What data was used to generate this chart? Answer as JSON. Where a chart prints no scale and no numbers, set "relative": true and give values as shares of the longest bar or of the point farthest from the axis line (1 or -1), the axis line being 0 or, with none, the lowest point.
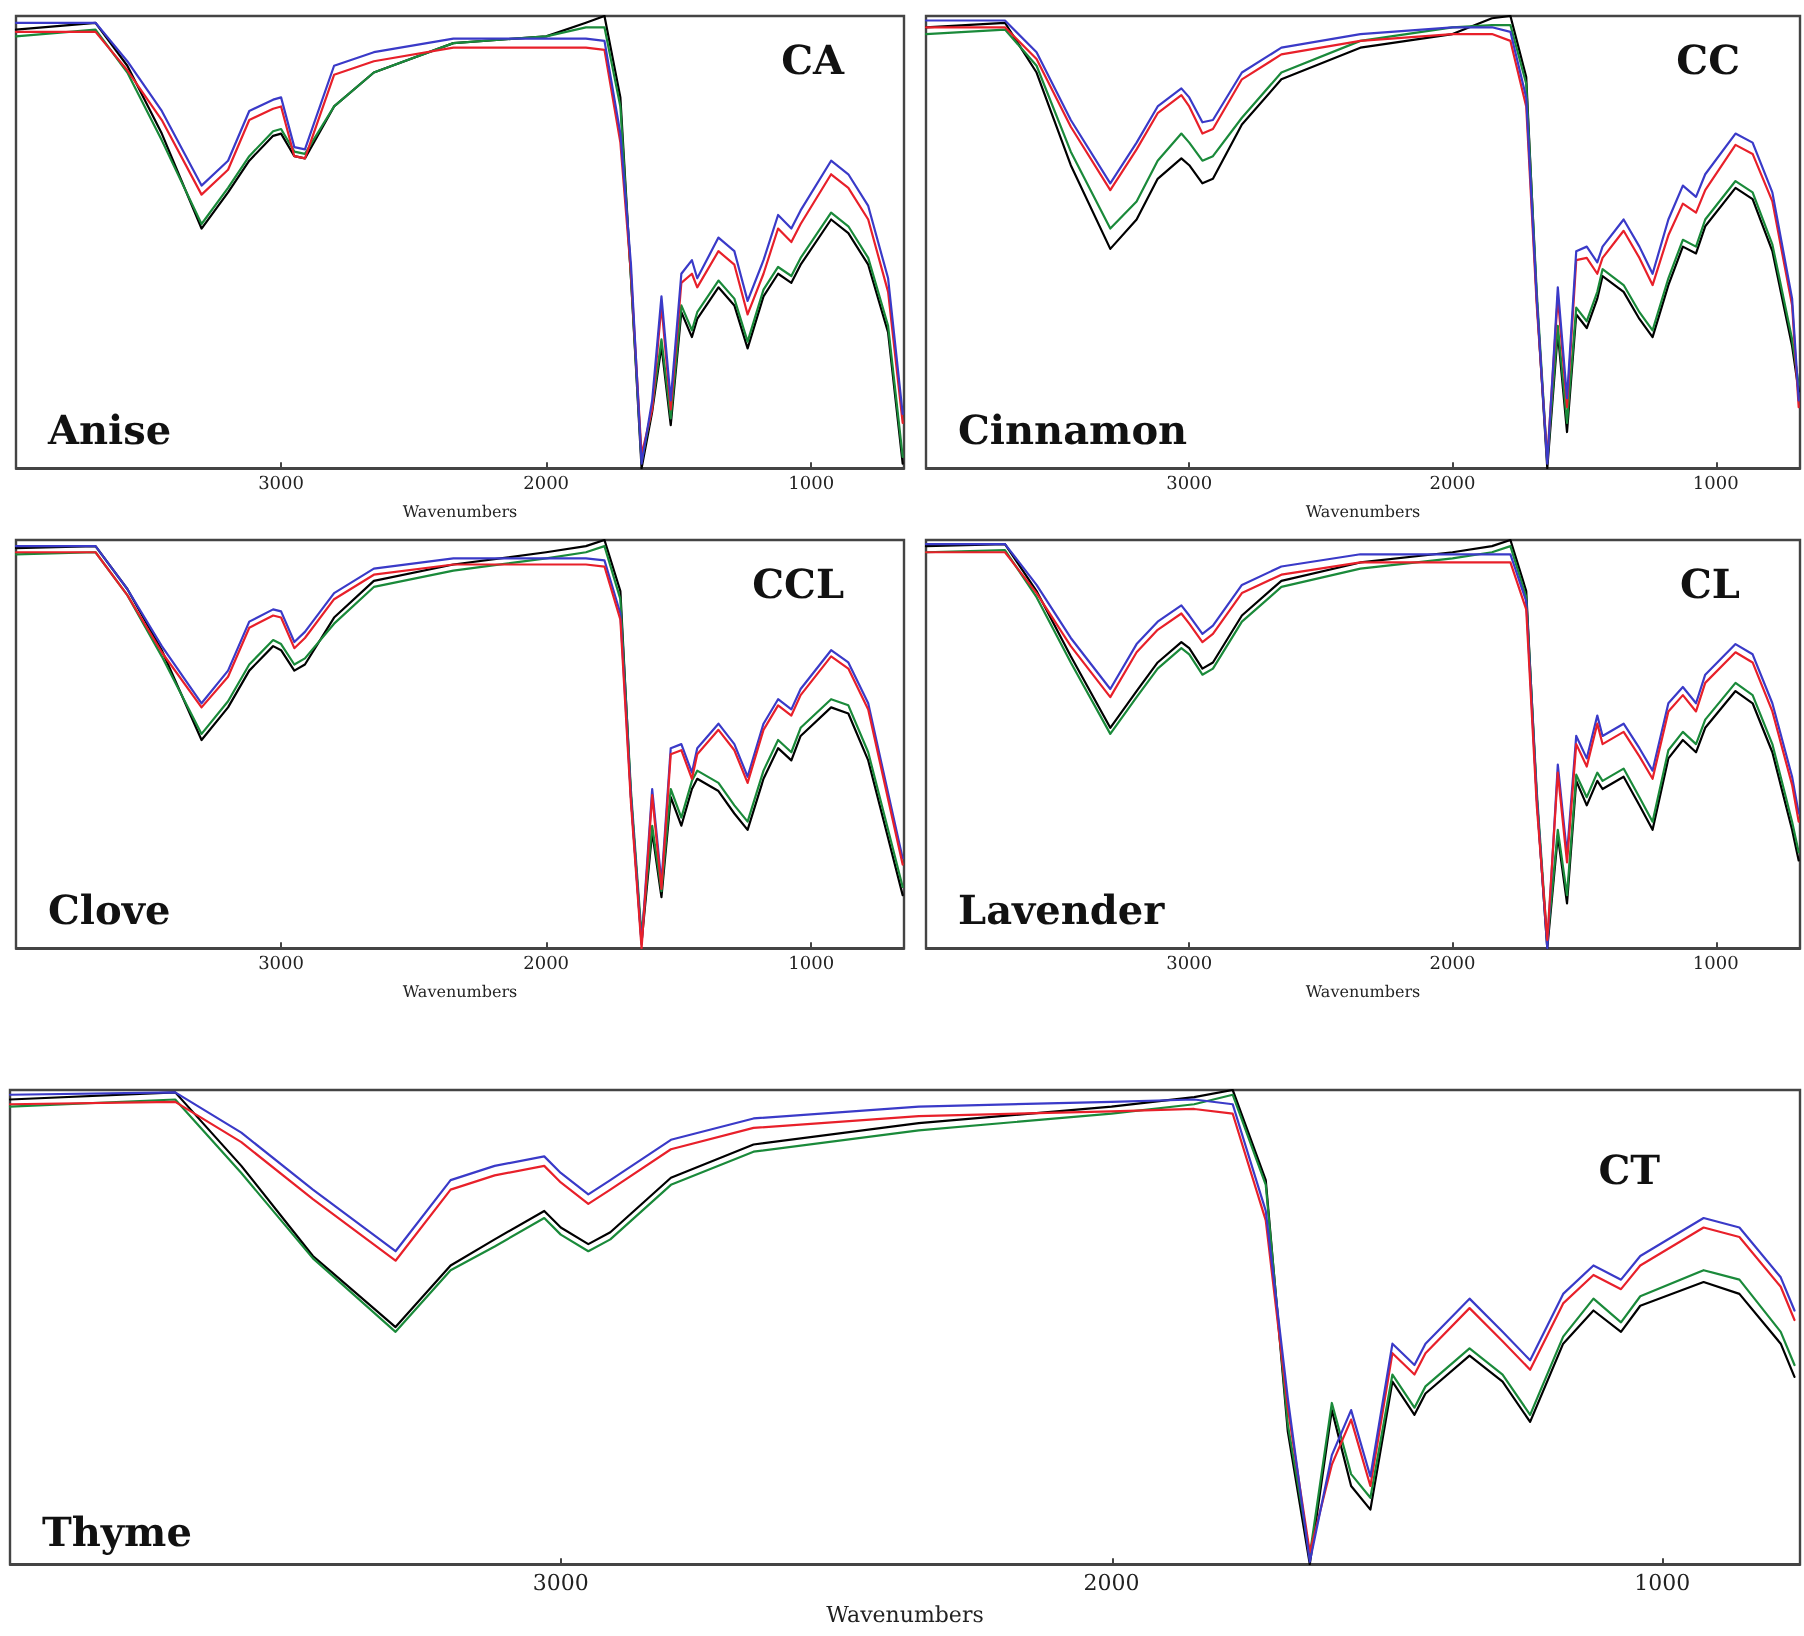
{
  "chart_data": [
    {
      "type": "line",
      "relative": true,
      "xlabel": "Wavenumbers",
      "annotations": [
        "CA",
        "Anise"
      ],
      "xlim": [
        4000,
        650
      ],
      "xticks": [
        3000,
        2000,
        1000
      ],
      "x": [
        4000,
        3700,
        3580,
        3450,
        3300,
        3200,
        3120,
        3030,
        3000,
        2950,
        2910,
        2800,
        2650,
        2350,
        2000,
        1850,
        1780,
        1720,
        1680,
        1640,
        1600,
        1565,
        1530,
        1490,
        1450,
        1430,
        1350,
        1290,
        1240,
        1180,
        1125,
        1075,
        1040,
        925,
        860,
        785,
        710,
        655
      ],
      "series": [
        {
          "color": "#000000",
          "values": [
            0.97,
            0.985,
            0.89,
            0.74,
            0.53,
            0.61,
            0.68,
            0.735,
            0.74,
            0.69,
            0.685,
            0.8,
            0.875,
            0.94,
            0.955,
            0.985,
            1,
            0.82,
            0.42,
            0,
            0.125,
            0.27,
            0.095,
            0.345,
            0.29,
            0.33,
            0.4,
            0.36,
            0.265,
            0.38,
            0.43,
            0.41,
            0.45,
            0.55,
            0.52,
            0.45,
            0.3,
            0.01
          ]
        },
        {
          "color": "#1a8a3a",
          "values": [
            0.955,
            0.97,
            0.875,
            0.725,
            0.54,
            0.62,
            0.69,
            0.745,
            0.75,
            0.7,
            0.695,
            0.8,
            0.875,
            0.94,
            0.955,
            0.975,
            0.975,
            0.8,
            0.42,
            0.015,
            0.135,
            0.285,
            0.11,
            0.36,
            0.305,
            0.345,
            0.415,
            0.375,
            0.28,
            0.395,
            0.445,
            0.425,
            0.465,
            0.565,
            0.535,
            0.465,
            0.315,
            0.025
          ]
        },
        {
          "color": "#e8202a",
          "values": [
            0.965,
            0.965,
            0.88,
            0.77,
            0.605,
            0.66,
            0.77,
            0.795,
            0.8,
            0.69,
            0.685,
            0.87,
            0.9,
            0.93,
            0.93,
            0.93,
            0.925,
            0.72,
            0.43,
            0.03,
            0.13,
            0.36,
            0.13,
            0.41,
            0.43,
            0.4,
            0.48,
            0.45,
            0.34,
            0.43,
            0.53,
            0.5,
            0.54,
            0.65,
            0.62,
            0.55,
            0.39,
            0.1
          ]
        },
        {
          "color": "#3a3ac8",
          "values": [
            0.985,
            0.985,
            0.9,
            0.79,
            0.625,
            0.68,
            0.79,
            0.815,
            0.82,
            0.71,
            0.705,
            0.89,
            0.92,
            0.95,
            0.95,
            0.95,
            0.945,
            0.74,
            0.45,
            0.01,
            0.15,
            0.38,
            0.15,
            0.43,
            0.46,
            0.42,
            0.51,
            0.48,
            0.37,
            0.46,
            0.56,
            0.53,
            0.57,
            0.68,
            0.65,
            0.58,
            0.42,
            0.12
          ]
        }
      ]
    },
    {
      "type": "line",
      "relative": true,
      "xlabel": "Wavenumbers",
      "annotations": [
        "CC",
        "Cinnamon"
      ],
      "xlim": [
        4000,
        680
      ],
      "xticks": [
        3000,
        2000,
        1000
      ],
      "x": [
        4000,
        3700,
        3580,
        3450,
        3300,
        3200,
        3120,
        3030,
        3000,
        2950,
        2910,
        2800,
        2650,
        2350,
        2000,
        1850,
        1780,
        1720,
        1680,
        1640,
        1600,
        1565,
        1530,
        1490,
        1450,
        1430,
        1350,
        1290,
        1240,
        1180,
        1125,
        1075,
        1040,
        925,
        860,
        785,
        710,
        685
      ],
      "series": [
        {
          "color": "#000000",
          "values": [
            0.975,
            0.985,
            0.875,
            0.67,
            0.485,
            0.55,
            0.64,
            0.685,
            0.67,
            0.63,
            0.64,
            0.76,
            0.86,
            0.93,
            0.96,
            0.995,
            1,
            0.865,
            0.375,
            0,
            0.3,
            0.08,
            0.34,
            0.31,
            0.375,
            0.425,
            0.39,
            0.33,
            0.29,
            0.405,
            0.49,
            0.475,
            0.535,
            0.62,
            0.595,
            0.48,
            0.27,
            0.17
          ]
        },
        {
          "color": "#1a8a3a",
          "values": [
            0.96,
            0.97,
            0.89,
            0.7,
            0.53,
            0.59,
            0.68,
            0.74,
            0.72,
            0.68,
            0.69,
            0.775,
            0.875,
            0.945,
            0.975,
            0.98,
            0.98,
            0.85,
            0.39,
            0.015,
            0.315,
            0.1,
            0.355,
            0.325,
            0.39,
            0.44,
            0.405,
            0.345,
            0.305,
            0.42,
            0.505,
            0.49,
            0.55,
            0.635,
            0.61,
            0.495,
            0.285,
            0.185
          ]
        },
        {
          "color": "#e8202a",
          "values": [
            0.975,
            0.975,
            0.905,
            0.755,
            0.615,
            0.705,
            0.785,
            0.825,
            0.8,
            0.74,
            0.75,
            0.86,
            0.915,
            0.945,
            0.96,
            0.96,
            0.945,
            0.8,
            0.36,
            0.02,
            0.38,
            0.135,
            0.46,
            0.465,
            0.43,
            0.465,
            0.525,
            0.465,
            0.405,
            0.515,
            0.585,
            0.565,
            0.615,
            0.715,
            0.695,
            0.59,
            0.36,
            0.135
          ]
        },
        {
          "color": "#3a3ac8",
          "values": [
            0.99,
            0.99,
            0.92,
            0.77,
            0.63,
            0.72,
            0.8,
            0.84,
            0.82,
            0.765,
            0.77,
            0.875,
            0.93,
            0.96,
            0.975,
            0.975,
            0.965,
            0.82,
            0.375,
            0.01,
            0.4,
            0.155,
            0.48,
            0.49,
            0.455,
            0.49,
            0.55,
            0.49,
            0.43,
            0.55,
            0.625,
            0.6,
            0.65,
            0.74,
            0.72,
            0.61,
            0.375,
            0.15
          ]
        }
      ]
    },
    {
      "type": "line",
      "relative": true,
      "xlabel": "Wavenumbers",
      "annotations": [
        "CCL",
        "Clove"
      ],
      "xlim": [
        4000,
        650
      ],
      "xticks": [
        3000,
        2000,
        1000
      ],
      "x": [
        4000,
        3700,
        3580,
        3450,
        3300,
        3200,
        3120,
        3030,
        3000,
        2950,
        2910,
        2800,
        2650,
        2350,
        2000,
        1850,
        1780,
        1720,
        1680,
        1640,
        1600,
        1565,
        1530,
        1490,
        1450,
        1430,
        1350,
        1290,
        1240,
        1180,
        1125,
        1075,
        1040,
        925,
        860,
        785,
        710,
        655
      ],
      "series": [
        {
          "color": "#000000",
          "values": [
            0.98,
            0.985,
            0.88,
            0.73,
            0.51,
            0.59,
            0.68,
            0.74,
            0.73,
            0.68,
            0.695,
            0.81,
            0.9,
            0.94,
            0.97,
            0.985,
            1,
            0.875,
            0.37,
            0.015,
            0.285,
            0.125,
            0.37,
            0.3,
            0.39,
            0.415,
            0.385,
            0.33,
            0.29,
            0.415,
            0.49,
            0.46,
            0.52,
            0.59,
            0.575,
            0.46,
            0.27,
            0.13
          ]
        },
        {
          "color": "#1a8a3a",
          "values": [
            0.965,
            0.97,
            0.865,
            0.715,
            0.525,
            0.605,
            0.695,
            0.755,
            0.745,
            0.695,
            0.71,
            0.795,
            0.885,
            0.925,
            0.955,
            0.97,
            0.985,
            0.855,
            0.385,
            0.03,
            0.3,
            0.14,
            0.39,
            0.32,
            0.41,
            0.435,
            0.405,
            0.35,
            0.31,
            0.435,
            0.51,
            0.48,
            0.54,
            0.61,
            0.595,
            0.48,
            0.29,
            0.15
          ]
        },
        {
          "color": "#3a3ac8",
          "values": [
            0.985,
            0.985,
            0.88,
            0.74,
            0.6,
            0.68,
            0.8,
            0.83,
            0.825,
            0.75,
            0.775,
            0.87,
            0.93,
            0.955,
            0.955,
            0.955,
            0.95,
            0.82,
            0.37,
            0.01,
            0.39,
            0.16,
            0.49,
            0.5,
            0.43,
            0.49,
            0.55,
            0.5,
            0.42,
            0.55,
            0.61,
            0.585,
            0.635,
            0.73,
            0.7,
            0.6,
            0.38,
            0.22
          ]
        },
        {
          "color": "#e8202a",
          "values": [
            0.97,
            0.97,
            0.865,
            0.725,
            0.59,
            0.665,
            0.785,
            0.815,
            0.81,
            0.735,
            0.76,
            0.855,
            0.915,
            0.94,
            0.94,
            0.94,
            0.935,
            0.805,
            0.355,
            0,
            0.375,
            0.145,
            0.475,
            0.485,
            0.415,
            0.475,
            0.535,
            0.485,
            0.405,
            0.535,
            0.595,
            0.57,
            0.62,
            0.715,
            0.685,
            0.585,
            0.365,
            0.205
          ]
        }
      ]
    },
    {
      "type": "line",
      "relative": true,
      "xlabel": "Wavenumbers",
      "annotations": [
        "CL",
        "Lavender"
      ],
      "xlim": [
        4000,
        680
      ],
      "xticks": [
        3000,
        2000,
        1000
      ],
      "x": [
        4000,
        3700,
        3580,
        3450,
        3300,
        3200,
        3120,
        3030,
        3000,
        2950,
        2910,
        2800,
        2650,
        2350,
        2000,
        1850,
        1780,
        1720,
        1680,
        1640,
        1600,
        1565,
        1530,
        1490,
        1450,
        1430,
        1350,
        1290,
        1240,
        1180,
        1125,
        1075,
        1040,
        925,
        860,
        785,
        710,
        685
      ],
      "series": [
        {
          "color": "#000000",
          "values": [
            0.985,
            0.99,
            0.875,
            0.715,
            0.54,
            0.63,
            0.7,
            0.75,
            0.735,
            0.685,
            0.7,
            0.815,
            0.9,
            0.945,
            0.97,
            0.985,
            1,
            0.875,
            0.37,
            0,
            0.275,
            0.11,
            0.41,
            0.35,
            0.41,
            0.39,
            0.42,
            0.35,
            0.29,
            0.465,
            0.51,
            0.48,
            0.54,
            0.63,
            0.6,
            0.48,
            0.29,
            0.215
          ]
        },
        {
          "color": "#1a8a3a",
          "values": [
            0.97,
            0.975,
            0.86,
            0.7,
            0.525,
            0.615,
            0.685,
            0.735,
            0.72,
            0.67,
            0.685,
            0.8,
            0.885,
            0.93,
            0.955,
            0.97,
            0.985,
            0.86,
            0.385,
            0.015,
            0.29,
            0.13,
            0.425,
            0.37,
            0.43,
            0.41,
            0.44,
            0.37,
            0.31,
            0.485,
            0.53,
            0.5,
            0.56,
            0.65,
            0.62,
            0.5,
            0.31,
            0.235
          ]
        },
        {
          "color": "#3a3ac8",
          "values": [
            0.99,
            0.99,
            0.89,
            0.76,
            0.635,
            0.745,
            0.8,
            0.84,
            0.815,
            0.77,
            0.79,
            0.89,
            0.935,
            0.965,
            0.965,
            0.965,
            0.965,
            0.85,
            0.37,
            0,
            0.45,
            0.23,
            0.52,
            0.465,
            0.57,
            0.52,
            0.55,
            0.49,
            0.435,
            0.6,
            0.64,
            0.6,
            0.67,
            0.745,
            0.72,
            0.6,
            0.42,
            0.33
          ]
        },
        {
          "color": "#e8202a",
          "values": [
            0.97,
            0.97,
            0.87,
            0.74,
            0.615,
            0.725,
            0.78,
            0.82,
            0.795,
            0.75,
            0.77,
            0.87,
            0.915,
            0.945,
            0.945,
            0.945,
            0.945,
            0.83,
            0.35,
            0.02,
            0.43,
            0.21,
            0.5,
            0.445,
            0.55,
            0.5,
            0.53,
            0.47,
            0.415,
            0.58,
            0.62,
            0.58,
            0.65,
            0.725,
            0.7,
            0.58,
            0.4,
            0.31
          ]
        }
      ]
    },
    {
      "type": "line",
      "relative": true,
      "xlabel": "Wavenumbers",
      "annotations": [
        "CT",
        "Thyme"
      ],
      "xlim": [
        4000,
        750
      ],
      "xticks": [
        3000,
        2000,
        1000
      ],
      "x": [
        4000,
        3700,
        3580,
        3450,
        3300,
        3200,
        3120,
        3030,
        3000,
        2950,
        2910,
        2800,
        2650,
        2350,
        2000,
        1850,
        1780,
        1720,
        1680,
        1640,
        1600,
        1565,
        1530,
        1490,
        1450,
        1430,
        1350,
        1290,
        1240,
        1180,
        1125,
        1075,
        1040,
        925,
        860,
        785,
        760
      ],
      "series": [
        {
          "color": "#000000",
          "values": [
            0.98,
            0.995,
            0.84,
            0.65,
            0.5,
            0.63,
            0.685,
            0.745,
            0.71,
            0.675,
            0.7,
            0.815,
            0.885,
            0.93,
            0.965,
            0.985,
            1,
            0.81,
            0.28,
            0,
            0.325,
            0.165,
            0.115,
            0.385,
            0.315,
            0.36,
            0.44,
            0.385,
            0.3,
            0.465,
            0.535,
            0.49,
            0.545,
            0.595,
            0.57,
            0.465,
            0.395
          ]
        },
        {
          "color": "#1a8a3a",
          "values": [
            0.965,
            0.98,
            0.825,
            0.645,
            0.49,
            0.62,
            0.67,
            0.73,
            0.695,
            0.66,
            0.685,
            0.8,
            0.87,
            0.915,
            0.95,
            0.97,
            0.99,
            0.8,
            0.295,
            0.02,
            0.34,
            0.19,
            0.14,
            0.4,
            0.33,
            0.375,
            0.455,
            0.4,
            0.315,
            0.48,
            0.56,
            0.51,
            0.565,
            0.62,
            0.6,
            0.49,
            0.42
          ]
        },
        {
          "color": "#e8202a",
          "values": [
            0.97,
            0.975,
            0.89,
            0.77,
            0.64,
            0.79,
            0.82,
            0.84,
            0.805,
            0.76,
            0.79,
            0.875,
            0.92,
            0.945,
            0.955,
            0.96,
            0.95,
            0.725,
            0.33,
            0.025,
            0.21,
            0.305,
            0.165,
            0.445,
            0.4,
            0.445,
            0.54,
            0.47,
            0.41,
            0.55,
            0.61,
            0.58,
            0.63,
            0.71,
            0.69,
            0.585,
            0.515
          ]
        },
        {
          "color": "#3a3ac8",
          "values": [
            0.99,
            0.995,
            0.91,
            0.79,
            0.66,
            0.81,
            0.84,
            0.86,
            0.825,
            0.78,
            0.81,
            0.895,
            0.94,
            0.965,
            0.975,
            0.98,
            0.97,
            0.745,
            0.35,
            0.005,
            0.23,
            0.325,
            0.185,
            0.465,
            0.42,
            0.465,
            0.56,
            0.49,
            0.43,
            0.57,
            0.63,
            0.6,
            0.65,
            0.73,
            0.71,
            0.605,
            0.535
          ]
        }
      ]
    }
  ]
}
